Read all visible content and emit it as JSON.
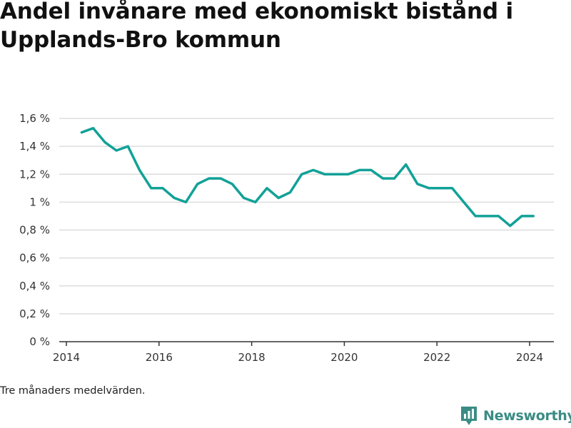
{
  "title": "Andel invånare med ekonomiskt bistånd i Upplands-Bro kommun",
  "footnote": "Tre månaders medelvärden.",
  "brand": {
    "name": "Newsworthy",
    "icon": "newsworthy-logo-icon",
    "color": "#3a8c84"
  },
  "colors": {
    "line": "#12a197",
    "grid": "#dddddd",
    "axis": "#333333"
  },
  "chart_data": {
    "type": "line",
    "title": "Andel invånare med ekonomiskt bistånd i Upplands-Bro kommun",
    "xlabel": "",
    "ylabel": "",
    "ylim": [
      0,
      1.6
    ],
    "xlim": [
      2014,
      2024.6
    ],
    "yticks": [
      0,
      0.2,
      0.4,
      0.6,
      0.8,
      1,
      1.2,
      1.4,
      1.6
    ],
    "ytick_labels": [
      "0 %",
      "0,2 %",
      "0,4 %",
      "0,6 %",
      "0,8 %",
      "1 %",
      "1,2 %",
      "1,4 %",
      "1,6 %"
    ],
    "xticks": [
      2014,
      2016,
      2018,
      2020,
      2022,
      2024
    ],
    "xtick_labels": [
      "2014",
      "2016",
      "2018",
      "2020",
      "2022",
      "2024"
    ],
    "grid": true,
    "legend": "none",
    "series": [
      {
        "x": [
          2014.33,
          2014.58,
          2014.83,
          2015.08,
          2015.33,
          2015.58,
          2015.83,
          2016.08,
          2016.33,
          2016.58,
          2016.83,
          2017.08,
          2017.33,
          2017.58,
          2017.83,
          2018.08,
          2018.33,
          2018.58,
          2018.83,
          2019.08,
          2019.33,
          2019.58,
          2019.83,
          2020.08,
          2020.33,
          2020.58,
          2020.83,
          2021.08,
          2021.33,
          2021.58,
          2021.83,
          2022.08,
          2022.33,
          2022.58,
          2022.83,
          2023.08,
          2023.33,
          2023.58,
          2023.83,
          2024.08
        ],
        "y": [
          1.5,
          1.53,
          1.43,
          1.37,
          1.4,
          1.23,
          1.1,
          1.1,
          1.03,
          1.0,
          1.13,
          1.17,
          1.17,
          1.13,
          1.03,
          1.0,
          1.1,
          1.03,
          1.07,
          1.2,
          1.23,
          1.2,
          1.2,
          1.2,
          1.23,
          1.23,
          1.17,
          1.17,
          1.27,
          1.13,
          1.1,
          1.1,
          1.1,
          1.0,
          0.9,
          0.9,
          0.9,
          0.83,
          0.9,
          0.9
        ]
      }
    ]
  }
}
